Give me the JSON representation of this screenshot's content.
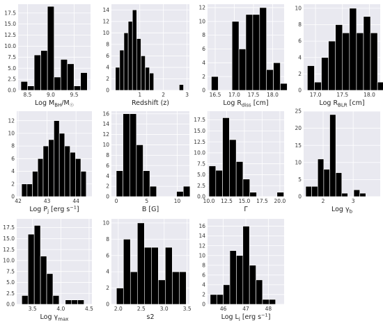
{
  "chart_data": [
    {
      "type": "bar",
      "id": "p1",
      "xlabel_parts": [
        {
          "t": "Log M"
        },
        {
          "t": "BH",
          "sub": true
        },
        {
          "t": "/M"
        },
        {
          "t": "☉",
          "sub": true
        }
      ],
      "xlim": [
        8.3,
        9.85
      ],
      "ylim": [
        0,
        19.5
      ],
      "xticks": [
        {
          "v": 8.5,
          "label": "8.5"
        },
        {
          "v": 9.0,
          "label": "9.0"
        },
        {
          "v": 9.5,
          "label": "9.5"
        }
      ],
      "yticks": [
        {
          "v": 0,
          "label": "0.0"
        },
        {
          "v": 2.5,
          "label": "2.5"
        },
        {
          "v": 5,
          "label": "5.0"
        },
        {
          "v": 7.5,
          "label": "7.5"
        },
        {
          "v": 10,
          "label": "10.0"
        },
        {
          "v": 12.5,
          "label": "12.5"
        },
        {
          "v": 15,
          "label": "15.0"
        },
        {
          "v": 17.5,
          "label": "17.5"
        }
      ],
      "bin_start": 8.36,
      "bin_width": 0.142,
      "counts": [
        2,
        1,
        8,
        9,
        19,
        3,
        7,
        6,
        1,
        4
      ]
    },
    {
      "type": "bar",
      "id": "p2",
      "xlabel_parts": [
        {
          "t": "Redshift (z)"
        }
      ],
      "xlim": [
        -0.2,
        3.1
      ],
      "ylim": [
        0,
        15
      ],
      "xticks": [
        {
          "v": 1,
          "label": "1"
        },
        {
          "v": 2,
          "label": "2"
        },
        {
          "v": 3,
          "label": "3"
        }
      ],
      "yticks": [
        {
          "v": 0,
          "label": "0"
        },
        {
          "v": 2,
          "label": "2"
        },
        {
          "v": 4,
          "label": "4"
        },
        {
          "v": 6,
          "label": "6"
        },
        {
          "v": 8,
          "label": "8"
        },
        {
          "v": 10,
          "label": "10"
        },
        {
          "v": 12,
          "label": "12"
        },
        {
          "v": 14,
          "label": "14"
        }
      ],
      "bin_start": -0.03,
      "bin_width": 0.18,
      "counts": [
        4,
        7,
        10,
        12,
        14,
        9,
        6,
        4,
        3,
        0,
        0,
        0,
        0,
        0,
        0,
        1
      ]
    },
    {
      "type": "bar",
      "id": "p3",
      "xlabel_parts": [
        {
          "t": "Log R"
        },
        {
          "t": "diss",
          "sub": true
        },
        {
          "t": " [cm]"
        }
      ],
      "xlim": [
        16.3,
        18.3
      ],
      "ylim": [
        0,
        12.5
      ],
      "xticks": [
        {
          "v": 16.5,
          "label": "16.5"
        },
        {
          "v": 17.0,
          "label": "17.0"
        },
        {
          "v": 17.5,
          "label": "17.5"
        },
        {
          "v": 18.0,
          "label": "18.0"
        }
      ],
      "yticks": [
        {
          "v": 0,
          "label": "0"
        },
        {
          "v": 2,
          "label": "2"
        },
        {
          "v": 4,
          "label": "4"
        },
        {
          "v": 6,
          "label": "6"
        },
        {
          "v": 8,
          "label": "8"
        },
        {
          "v": 10,
          "label": "10"
        },
        {
          "v": 12,
          "label": "12"
        }
      ],
      "bin_start": 16.4,
      "bin_width": 0.18,
      "counts": [
        2,
        0,
        0,
        10,
        6,
        11,
        11,
        12,
        3,
        4,
        1
      ]
    },
    {
      "type": "bar",
      "id": "p4",
      "xlabel_parts": [
        {
          "t": "Log R"
        },
        {
          "t": "BLR",
          "sub": true
        },
        {
          "t": " [cm]"
        }
      ],
      "xlim": [
        16.78,
        18.2
      ],
      "ylim": [
        0,
        10.5
      ],
      "xticks": [
        {
          "v": 17.0,
          "label": "17.0"
        },
        {
          "v": 17.5,
          "label": "17.5"
        },
        {
          "v": 18.0,
          "label": "18.0"
        }
      ],
      "yticks": [
        {
          "v": 0,
          "label": "0"
        },
        {
          "v": 2,
          "label": "2"
        },
        {
          "v": 4,
          "label": "4"
        },
        {
          "v": 6,
          "label": "6"
        },
        {
          "v": 8,
          "label": "8"
        },
        {
          "v": 10,
          "label": "10"
        }
      ],
      "bin_start": 16.85,
      "bin_width": 0.13,
      "counts": [
        3,
        1,
        4,
        6,
        8,
        7,
        10,
        7,
        9,
        7,
        1
      ]
    },
    {
      "type": "bar",
      "id": "p5",
      "xlabel_parts": [
        {
          "t": "Log P"
        },
        {
          "t": "j",
          "sub": true
        },
        {
          "t": " [erg s"
        },
        {
          "t": "−1",
          "sup": true
        },
        {
          "t": "]"
        }
      ],
      "xlim": [
        41.95,
        44.55
      ],
      "ylim": [
        0,
        13.5
      ],
      "xticks": [
        {
          "v": 42,
          "label": "42"
        },
        {
          "v": 43,
          "label": "43"
        },
        {
          "v": 44,
          "label": "44"
        }
      ],
      "yticks": [
        {
          "v": 0,
          "label": "0"
        },
        {
          "v": 2,
          "label": "2"
        },
        {
          "v": 4,
          "label": "4"
        },
        {
          "v": 6,
          "label": "6"
        },
        {
          "v": 8,
          "label": "8"
        },
        {
          "v": 10,
          "label": "10"
        },
        {
          "v": 12,
          "label": "12"
        }
      ],
      "bin_start": 42.12,
      "bin_width": 0.186,
      "counts": [
        2,
        2,
        4,
        6,
        8,
        9,
        12,
        10,
        8,
        7,
        6,
        4
      ]
    },
    {
      "type": "bar",
      "id": "p6",
      "xlabel_parts": [
        {
          "t": "B [G]"
        }
      ],
      "xlim": [
        -0.8,
        12
      ],
      "ylim": [
        0,
        16.5
      ],
      "xticks": [
        {
          "v": 0,
          "label": "0"
        },
        {
          "v": 5,
          "label": "5"
        },
        {
          "v": 10,
          "label": "10"
        }
      ],
      "yticks": [
        {
          "v": 0,
          "label": "0"
        },
        {
          "v": 2,
          "label": "2"
        },
        {
          "v": 4,
          "label": "4"
        },
        {
          "v": 6,
          "label": "6"
        },
        {
          "v": 8,
          "label": "8"
        },
        {
          "v": 10,
          "label": "10"
        },
        {
          "v": 12,
          "label": "12"
        },
        {
          "v": 14,
          "label": "14"
        },
        {
          "v": 16,
          "label": "16"
        }
      ],
      "bin_start": 0.0,
      "bin_width": 1.1,
      "counts": [
        5,
        16,
        16,
        10,
        5,
        2,
        0,
        0,
        0,
        1,
        2
      ]
    },
    {
      "type": "bar",
      "id": "p7",
      "xlabel_parts": [
        {
          "t": "Γ"
        }
      ],
      "xlim": [
        9.8,
        20.6
      ],
      "ylim": [
        0,
        19.5
      ],
      "xticks": [
        {
          "v": 10.0,
          "label": "10.0"
        },
        {
          "v": 12.5,
          "label": "12.5"
        },
        {
          "v": 15.0,
          "label": "15.0"
        },
        {
          "v": 17.5,
          "label": "17.5"
        },
        {
          "v": 20.0,
          "label": "20.0"
        }
      ],
      "yticks": [
        {
          "v": 0,
          "label": "0.0"
        },
        {
          "v": 2.5,
          "label": "2.5"
        },
        {
          "v": 5,
          "label": "5.0"
        },
        {
          "v": 7.5,
          "label": "7.5"
        },
        {
          "v": 10,
          "label": "10.0"
        },
        {
          "v": 12.5,
          "label": "12.5"
        },
        {
          "v": 15,
          "label": "15.0"
        },
        {
          "v": 17.5,
          "label": "17.5"
        }
      ],
      "bin_start": 10.0,
      "bin_width": 0.96,
      "counts": [
        7,
        6,
        18,
        13,
        8,
        4,
        1,
        0,
        0,
        0,
        1
      ]
    },
    {
      "type": "bar",
      "id": "p8",
      "xlabel_parts": [
        {
          "t": "Log γ"
        },
        {
          "t": "b",
          "sub": true
        }
      ],
      "xlim": [
        1.35,
        3.9
      ],
      "ylim": [
        0,
        25
      ],
      "xticks": [
        {
          "v": 2,
          "label": "2"
        },
        {
          "v": 3,
          "label": "3"
        }
      ],
      "yticks": [
        {
          "v": 0,
          "label": "0"
        },
        {
          "v": 5,
          "label": "5"
        },
        {
          "v": 10,
          "label": "10"
        },
        {
          "v": 15,
          "label": "15"
        },
        {
          "v": 20,
          "label": "20"
        },
        {
          "v": 25,
          "label": "25"
        }
      ],
      "bin_start": 1.42,
      "bin_width": 0.2,
      "counts": [
        3,
        3,
        11,
        8,
        24,
        7,
        1,
        0,
        2,
        1
      ]
    },
    {
      "type": "bar",
      "id": "p9",
      "xlabel_parts": [
        {
          "t": "Log γ"
        },
        {
          "t": "max",
          "sub": true
        }
      ],
      "xlim": [
        3.22,
        4.55
      ],
      "ylim": [
        0,
        19.5
      ],
      "xticks": [
        {
          "v": 3.5,
          "label": "3.5"
        },
        {
          "v": 4.0,
          "label": "4.0"
        },
        {
          "v": 4.5,
          "label": "4.5"
        }
      ],
      "yticks": [
        {
          "v": 0,
          "label": "0.0"
        },
        {
          "v": 2.5,
          "label": "2.5"
        },
        {
          "v": 5,
          "label": "5.0"
        },
        {
          "v": 7.5,
          "label": "7.5"
        },
        {
          "v": 10,
          "label": "10.0"
        },
        {
          "v": 12.5,
          "label": "12.5"
        },
        {
          "v": 15,
          "label": "15.0"
        },
        {
          "v": 17.5,
          "label": "17.5"
        }
      ],
      "bin_start": 3.31,
      "bin_width": 0.11,
      "counts": [
        2,
        16,
        18,
        11,
        7,
        2,
        0,
        1,
        1,
        1
      ]
    },
    {
      "type": "bar",
      "id": "p10",
      "xlabel_parts": [
        {
          "t": "s2"
        }
      ],
      "xlim": [
        1.85,
        3.55
      ],
      "ylim": [
        0,
        10.5
      ],
      "xticks": [
        {
          "v": 2.0,
          "label": "2.0"
        },
        {
          "v": 2.5,
          "label": "2.5"
        },
        {
          "v": 3.0,
          "label": "3.0"
        },
        {
          "v": 3.5,
          "label": "3.5"
        }
      ],
      "yticks": [
        {
          "v": 0,
          "label": "0"
        },
        {
          "v": 2,
          "label": "2"
        },
        {
          "v": 4,
          "label": "4"
        },
        {
          "v": 6,
          "label": "6"
        },
        {
          "v": 8,
          "label": "8"
        },
        {
          "v": 10,
          "label": "10"
        }
      ],
      "bin_start": 1.96,
      "bin_width": 0.152,
      "counts": [
        2,
        8,
        4,
        10,
        7,
        7,
        3,
        7,
        4,
        4
      ]
    },
    {
      "type": "bar",
      "id": "p11",
      "xlabel_parts": [
        {
          "t": "Log L"
        },
        {
          "t": "j",
          "sub": true
        },
        {
          "t": " [erg s"
        },
        {
          "t": "−1",
          "sup": true
        },
        {
          "t": "]"
        }
      ],
      "xlim": [
        45.3,
        48.7
      ],
      "ylim": [
        0,
        17.5
      ],
      "xticks": [
        {
          "v": 46,
          "label": "46"
        },
        {
          "v": 47,
          "label": "47"
        },
        {
          "v": 48,
          "label": "48"
        }
      ],
      "yticks": [
        {
          "v": 0,
          "label": "0"
        },
        {
          "v": 2,
          "label": "2"
        },
        {
          "v": 4,
          "label": "4"
        },
        {
          "v": 6,
          "label": "6"
        },
        {
          "v": 8,
          "label": "8"
        },
        {
          "v": 10,
          "label": "10"
        },
        {
          "v": 12,
          "label": "12"
        },
        {
          "v": 14,
          "label": "14"
        },
        {
          "v": 16,
          "label": "16"
        }
      ],
      "bin_start": 45.42,
      "bin_width": 0.29,
      "counts": [
        2,
        2,
        4,
        11,
        10,
        16,
        8,
        5,
        1,
        1
      ]
    }
  ]
}
